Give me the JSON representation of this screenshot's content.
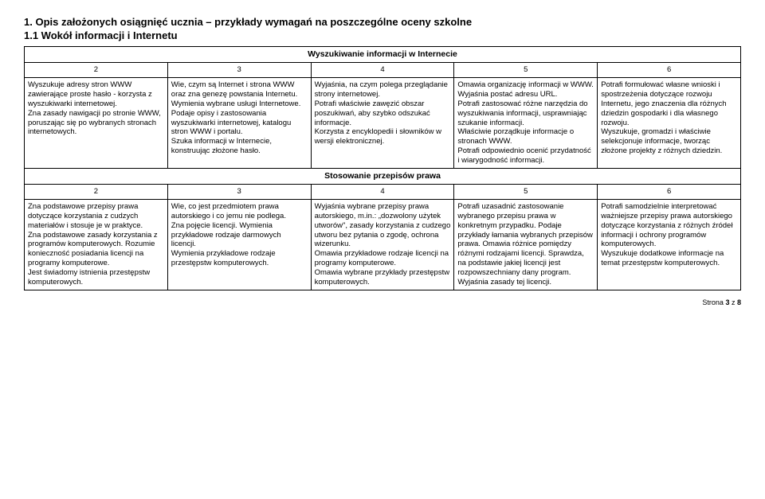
{
  "headings": {
    "main": "1. Opis założonych osiągnięć ucznia – przykłady wymagań na poszczególne oceny szkolne",
    "sub": "1.1  Wokół informacji i Internetu"
  },
  "section1": {
    "title": "Wyszukiwanie informacji w Internecie",
    "colnums": [
      "2",
      "3",
      "4",
      "5",
      "6"
    ],
    "cells": {
      "c2": "Wyszukuje adresy stron WWW zawierające proste hasło - korzysta z wyszukiwarki internetowej.\nZna zasady nawigacji po stronie WWW, poruszając się po wybranych stronach internetowych.",
      "c3": "Wie, czym są Internet i strona WWW oraz zna genezę powstania Internetu.\nWymienia wybrane usługi Internetowe.\nPodaje opisy i zastosowania wyszukiwarki internetowej, katalogu stron WWW i portalu.\nSzuka informacji w Internecie, konstruując złożone hasło.",
      "c4": "Wyjaśnia, na czym polega przeglądanie strony internetowej.\nPotrafi właściwie zawęzić obszar poszukiwań, aby szybko odszukać informacje.\nKorzysta z encyklopedii i słowników w wersji elektronicznej.",
      "c5": "Omawia organizację informacji w WWW. Wyjaśnia postać adresu URL.\nPotrafi zastosować różne narzędzia do wyszukiwania informacji, usprawniając szukanie informacji.\nWłaściwie porządkuje informacje o stronach WWW.\nPotrafi odpowiednio ocenić przydatność i wiarygodność informacji.",
      "c6": "Potrafi formułować własne wnioski i spostrzeżenia dotyczące rozwoju Internetu, jego znaczenia dla różnych dziedzin gospodarki i dla własnego rozwoju.\nWyszukuje, gromadzi i właściwie selekcjonuje informacje, tworząc złożone projekty z różnych dziedzin."
    }
  },
  "section2": {
    "title": "Stosowanie przepisów prawa",
    "colnums": [
      "2",
      "3",
      "4",
      "5",
      "6"
    ],
    "cells": {
      "c2": "Zna podstawowe przepisy prawa dotyczące korzystania z cudzych materiałów i stosuje je w praktyce.\nZna podstawowe zasady korzystania z programów komputerowych. Rozumie konieczność posiadania licencji na programy komputerowe.\nJest świadomy istnienia przestępstw komputerowych.",
      "c3": "Wie, co jest przedmiotem prawa autorskiego i co jemu nie podlega.\nZna pojęcie licencji. Wymienia przykładowe rodzaje darmowych licencji.\nWymienia przykładowe rodzaje przestępstw komputerowych.",
      "c4": "Wyjaśnia wybrane przepisy prawa autorskiego, m.in.: „dozwolony użytek utworów\", zasady korzystania z cudzego utworu bez pytania  o zgodę, ochrona wizerunku.\nOmawia przykładowe rodzaje licencji na programy komputerowe.\nOmawia wybrane przykłady przestępstw komputerowych.",
      "c5": "Potrafi uzasadnić zastosowanie wybranego przepisu prawa w konkretnym przypadku. Podaje przykłady łamania wybranych przepisów prawa. Omawia różnice pomiędzy różnymi rodzajami licencji. Sprawdza, na podstawie jakiej licencji jest rozpowszechniany dany program. Wyjaśnia zasady tej licencji.",
      "c6": "Potrafi samodzielnie interpretować ważniejsze przepisy prawa autorskiego dotyczące korzystania z różnych źródeł informacji i ochrony programów komputerowych.\nWyszukuje dodatkowe informacje na temat przestępstw komputerowych."
    }
  },
  "footer": {
    "label_prefix": "Strona ",
    "page": "3",
    "of_label": " z ",
    "total": "8"
  }
}
